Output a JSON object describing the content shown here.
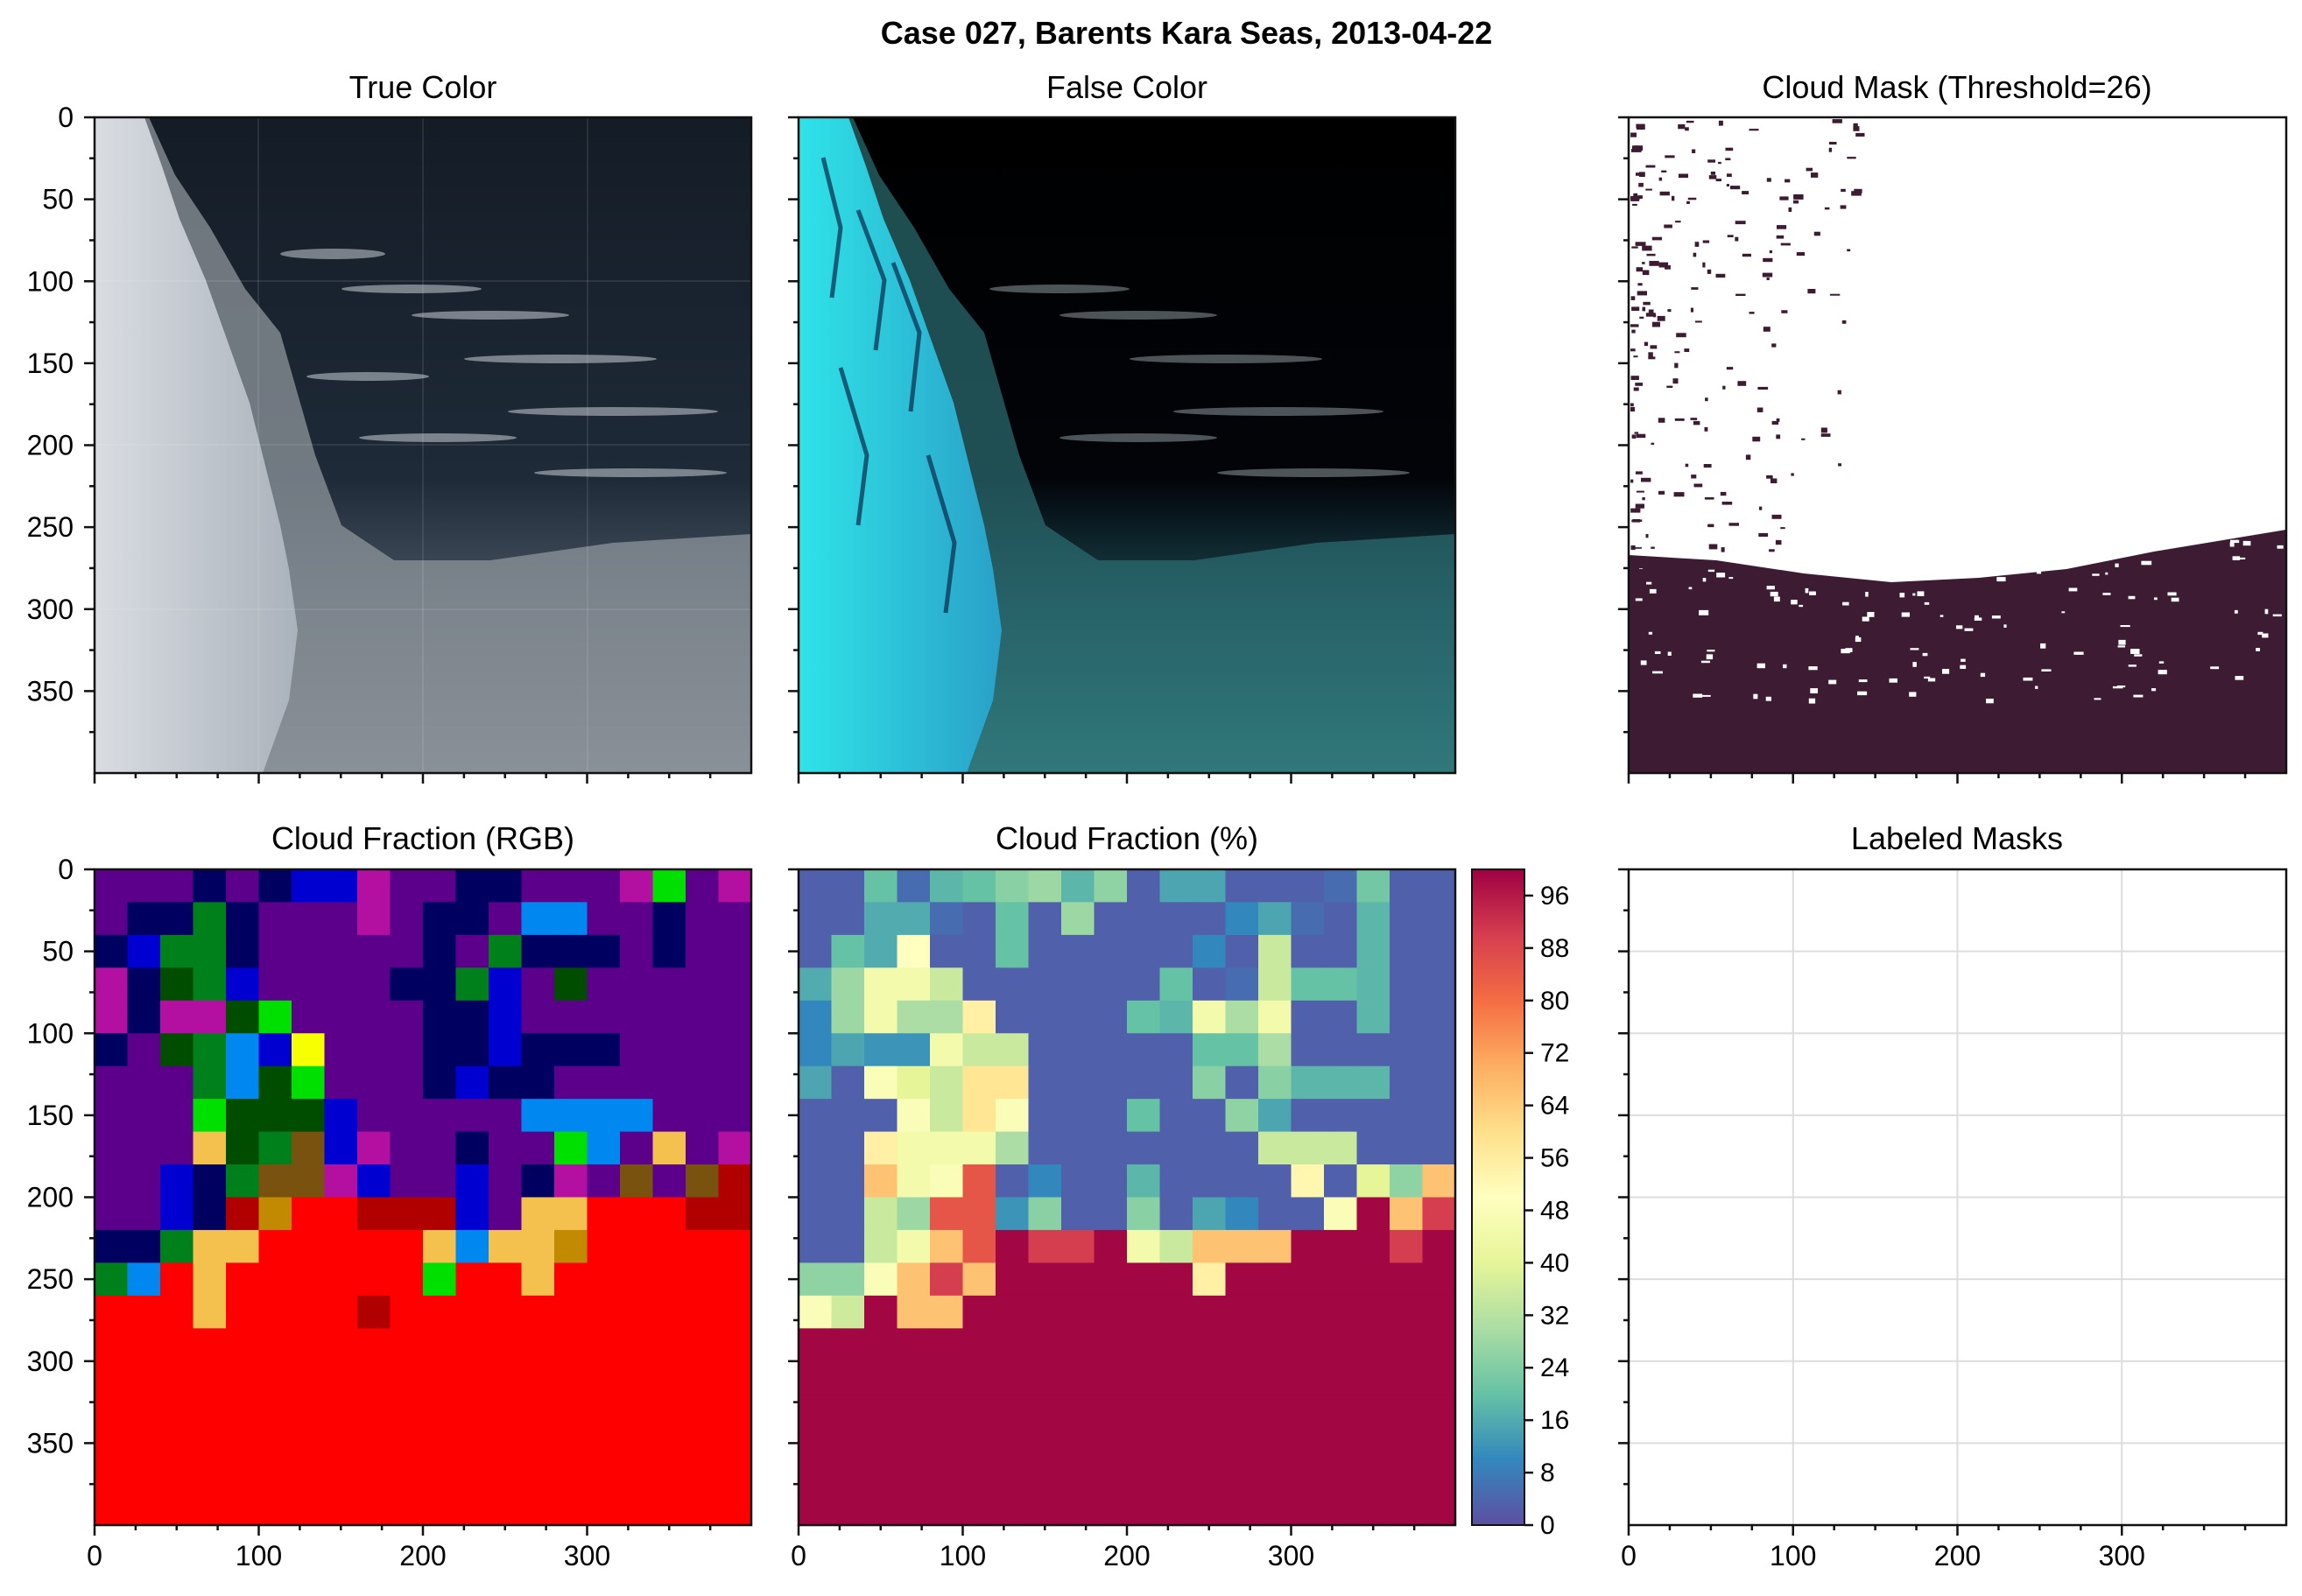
{
  "figure": {
    "suptitle": "Case 027, Barents Kara Seas, 2013-04-22"
  },
  "panels": {
    "true_color": {
      "title": "True Color"
    },
    "false_color": {
      "title": "False Color"
    },
    "cloud_mask": {
      "title": "Cloud Mask (Threshold=26)",
      "cloud_color": "#3d1c33"
    },
    "cloud_fraction_rgb": {
      "title": "Cloud Fraction (RGB)"
    },
    "cloud_fraction_pct": {
      "title": "Cloud Fraction (%)"
    },
    "labeled_masks": {
      "title": "Labeled Masks"
    }
  },
  "chart_data": {
    "type": "heatmap",
    "title": "Cloud Fraction (%)",
    "grid_shape": [
      20,
      20
    ],
    "cell_size": 20,
    "xlim": [
      0,
      400
    ],
    "ylim": [
      400,
      0
    ],
    "x_ticks": [
      "0",
      "100",
      "200",
      "300"
    ],
    "y_ticks": [
      "0",
      "50",
      "100",
      "150",
      "200",
      "250",
      "300",
      "350"
    ],
    "colorbar_ticks": [
      "0",
      "8",
      "16",
      "24",
      "32",
      "40",
      "48",
      "56",
      "64",
      "72",
      "80",
      "88",
      "96"
    ],
    "colorbar_range": [
      0,
      100
    ],
    "colormap": "Spectral_r",
    "colormap_stops": [
      "#5e4fa2",
      "#3288bd",
      "#66c2a5",
      "#abdda4",
      "#e6f598",
      "#ffffbf",
      "#fee08b",
      "#fdae61",
      "#f46d43",
      "#d53e4f",
      "#9e0142"
    ],
    "values": [
      [
        3,
        3,
        20,
        5,
        18,
        20,
        25,
        28,
        18,
        26,
        3,
        15,
        15,
        3,
        3,
        3,
        5,
        22,
        3,
        3
      ],
      [
        3,
        3,
        16,
        16,
        5,
        3,
        20,
        3,
        28,
        3,
        3,
        3,
        3,
        10,
        15,
        5,
        3,
        18,
        3,
        3
      ],
      [
        3,
        20,
        16,
        50,
        3,
        3,
        20,
        3,
        3,
        3,
        3,
        3,
        10,
        3,
        35,
        3,
        3,
        18,
        3,
        3
      ],
      [
        16,
        28,
        45,
        45,
        35,
        3,
        3,
        3,
        3,
        3,
        3,
        20,
        3,
        5,
        35,
        20,
        20,
        18,
        3,
        3
      ],
      [
        10,
        28,
        45,
        30,
        30,
        55,
        3,
        3,
        3,
        3,
        20,
        18,
        45,
        30,
        45,
        3,
        3,
        18,
        3,
        3
      ],
      [
        10,
        15,
        12,
        12,
        45,
        35,
        35,
        3,
        3,
        3,
        3,
        3,
        20,
        20,
        30,
        3,
        3,
        3,
        3,
        3
      ],
      [
        15,
        3,
        48,
        40,
        35,
        58,
        58,
        3,
        3,
        3,
        3,
        3,
        25,
        3,
        25,
        18,
        18,
        18,
        3,
        3
      ],
      [
        3,
        3,
        3,
        48,
        35,
        58,
        48,
        3,
        3,
        3,
        20,
        3,
        3,
        26,
        15,
        3,
        3,
        3,
        3,
        3
      ],
      [
        3,
        3,
        55,
        45,
        45,
        45,
        30,
        3,
        3,
        3,
        3,
        3,
        3,
        3,
        35,
        35,
        35,
        3,
        3,
        3
      ],
      [
        3,
        3,
        66,
        45,
        48,
        85,
        3,
        10,
        3,
        3,
        18,
        3,
        3,
        3,
        3,
        53,
        3,
        40,
        26,
        66
      ],
      [
        3,
        3,
        35,
        28,
        85,
        85,
        12,
        25,
        3,
        3,
        25,
        3,
        15,
        10,
        3,
        3,
        48,
        99,
        66,
        90
      ],
      [
        3,
        3,
        35,
        45,
        66,
        85,
        99,
        90,
        90,
        99,
        45,
        35,
        66,
        66,
        66,
        99,
        99,
        99,
        90,
        99
      ],
      [
        26,
        26,
        48,
        66,
        90,
        66,
        99,
        99,
        99,
        99,
        99,
        99,
        55,
        99,
        99,
        99,
        99,
        99,
        99,
        99
      ],
      [
        48,
        36,
        99,
        66,
        66,
        99,
        99,
        99,
        99,
        99,
        99,
        99,
        99,
        99,
        99,
        99,
        99,
        99,
        99,
        99
      ],
      [
        99,
        99,
        99,
        99,
        99,
        99,
        99,
        99,
        99,
        99,
        99,
        99,
        99,
        99,
        99,
        99,
        99,
        99,
        99,
        99
      ],
      [
        99,
        99,
        99,
        99,
        99,
        99,
        99,
        99,
        99,
        99,
        99,
        99,
        99,
        99,
        99,
        99,
        99,
        99,
        99,
        99
      ],
      [
        99,
        99,
        99,
        99,
        99,
        99,
        99,
        99,
        99,
        99,
        99,
        99,
        99,
        99,
        99,
        99,
        99,
        99,
        99,
        99
      ],
      [
        99,
        99,
        99,
        99,
        99,
        99,
        99,
        99,
        99,
        99,
        99,
        99,
        99,
        99,
        99,
        99,
        99,
        99,
        99,
        99
      ],
      [
        99,
        99,
        99,
        99,
        99,
        99,
        99,
        99,
        99,
        99,
        99,
        99,
        99,
        99,
        99,
        99,
        99,
        99,
        99,
        99
      ],
      [
        99,
        99,
        99,
        99,
        99,
        99,
        99,
        99,
        99,
        99,
        99,
        99,
        99,
        99,
        99,
        99,
        99,
        99,
        99,
        99
      ]
    ],
    "rgb_palette": {
      "P": "#5c008c",
      "N": "#000060",
      "B": "#0000d0",
      "M": "#b30fa0",
      "G": "#00801a",
      "D": "#004d00",
      "L": "#00e000",
      "A": "#0088f0",
      "Y": "#f8ff00",
      "O": "#f4c04e",
      "K": "#c28a00",
      "W": "#7a5210",
      "R": "#ff0000",
      "r": "#b00000"
    },
    "rgb_grid": [
      "PPPNPNBBMPPNNPPPMLPM",
      "PNNGNPPPMPNNPAAPPNPP",
      "NBGGNPPPPPNPGNNNPNPP",
      "MNDGBPPPPNNGBPDPPPPP",
      "MNMMDLPPPPNNBPPPPPPP",
      "NPDGABYPPPNNBNNNPPPP",
      "PPPGADLPPPNBNNPPPPPP",
      "PPPLDDDBPPPPPAAAAPPP",
      "PPPODGWBMPPNPPLAPOPM",
      "PPBNGWWMBPPBPNMPWPWr",
      "PPBNrKRRrrrBPOORRRrr",
      "NNGOORRRRROAOOKRRRRR",
      "GARORRRRRRLRRORRRRRR",
      "RRRORRRRrRRRRRRRRRRR",
      "RRRRRRRRRRRRRRRRRRRR",
      "RRRRRRRRRRRRRRRRRRRR",
      "RRRRRRRRRRRRRRRRRRRR",
      "RRRRRRRRRRRRRRRRRRRR",
      "RRRRRRRRRRRRRRRRRRRR",
      "RRRRRRRRRRRRRRRRRRRR"
    ]
  }
}
